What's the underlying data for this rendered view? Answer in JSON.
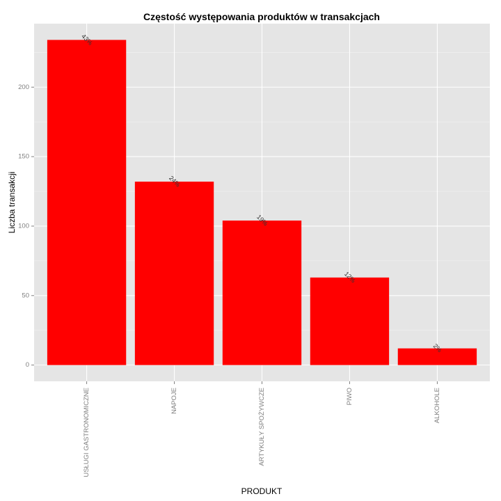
{
  "chart_data": {
    "type": "bar",
    "title": "Częstość występowania produktów w transakcjach",
    "xlabel": "PRODUKT",
    "ylabel": "Liczba transakcji",
    "categories": [
      "USŁUGI GASTRONOMICZNE",
      "NAPOJE",
      "ARTYKUŁY SPOŻYWCZE",
      "PIWO",
      "ALKOHOLE"
    ],
    "values": [
      234,
      132,
      104,
      63,
      12
    ],
    "data_labels": [
      "43%",
      "24%",
      "19%",
      "12%",
      "2%"
    ],
    "yticks": [
      0,
      50,
      100,
      150,
      200
    ],
    "ylim": [
      -11.7,
      245.7
    ],
    "grid": true,
    "legend": "none",
    "colors": {
      "bar": "#ff0000",
      "panel": "#e5e5e5",
      "grid_major": "#ffffff",
      "grid_minor": "#f2f2f2"
    }
  }
}
